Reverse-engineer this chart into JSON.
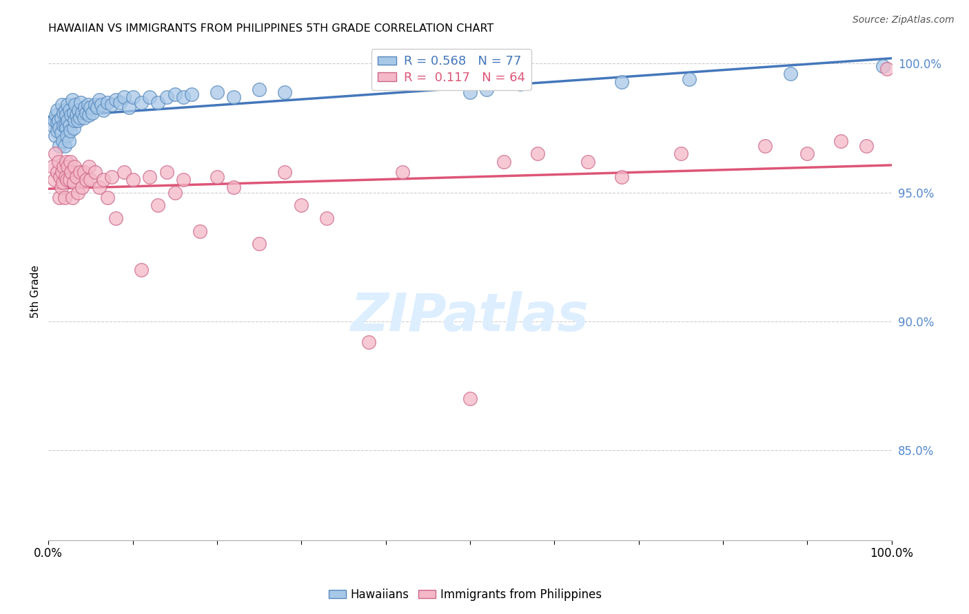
{
  "title": "HAWAIIAN VS IMMIGRANTS FROM PHILIPPINES 5TH GRADE CORRELATION CHART",
  "source": "Source: ZipAtlas.com",
  "ylabel": "5th Grade",
  "legend_label1": "Hawaiians",
  "legend_label2": "Immigrants from Philippines",
  "r1": 0.568,
  "n1": 77,
  "r2": 0.117,
  "n2": 64,
  "color_blue_fill": "#a8c8e8",
  "color_blue_edge": "#5588bb",
  "color_pink_fill": "#f4b8c8",
  "color_pink_edge": "#cc6688",
  "color_blue_line": "#4477bb",
  "color_pink_line": "#dd5577",
  "background": "#ffffff",
  "watermark_color": "#ddeeff",
  "ytick_labels": [
    "85.0%",
    "90.0%",
    "95.0%",
    "100.0%"
  ],
  "ytick_values": [
    0.85,
    0.9,
    0.95,
    1.0
  ],
  "ymin": 0.815,
  "ymax": 1.008,
  "xmin": 0.0,
  "xmax": 1.0,
  "blue_points_x": [
    0.005,
    0.007,
    0.008,
    0.009,
    0.01,
    0.01,
    0.01,
    0.012,
    0.013,
    0.013,
    0.015,
    0.015,
    0.016,
    0.017,
    0.018,
    0.018,
    0.019,
    0.02,
    0.02,
    0.021,
    0.021,
    0.022,
    0.023,
    0.023,
    0.024,
    0.025,
    0.025,
    0.026,
    0.027,
    0.028,
    0.03,
    0.03,
    0.031,
    0.032,
    0.033,
    0.035,
    0.036,
    0.037,
    0.038,
    0.04,
    0.042,
    0.043,
    0.045,
    0.047,
    0.048,
    0.05,
    0.052,
    0.055,
    0.058,
    0.06,
    0.063,
    0.065,
    0.07,
    0.075,
    0.08,
    0.085,
    0.09,
    0.095,
    0.1,
    0.11,
    0.12,
    0.13,
    0.14,
    0.15,
    0.16,
    0.17,
    0.2,
    0.22,
    0.25,
    0.28,
    0.5,
    0.52,
    0.56,
    0.68,
    0.76,
    0.88,
    0.99
  ],
  "blue_points_y": [
    0.976,
    0.978,
    0.972,
    0.98,
    0.974,
    0.977,
    0.982,
    0.978,
    0.968,
    0.975,
    0.973,
    0.979,
    0.984,
    0.97,
    0.976,
    0.981,
    0.968,
    0.976,
    0.982,
    0.975,
    0.98,
    0.972,
    0.978,
    0.984,
    0.97,
    0.976,
    0.982,
    0.974,
    0.98,
    0.986,
    0.975,
    0.981,
    0.978,
    0.984,
    0.98,
    0.978,
    0.982,
    0.979,
    0.985,
    0.981,
    0.979,
    0.983,
    0.981,
    0.984,
    0.98,
    0.983,
    0.981,
    0.984,
    0.983,
    0.986,
    0.984,
    0.982,
    0.985,
    0.984,
    0.986,
    0.985,
    0.987,
    0.983,
    0.987,
    0.985,
    0.987,
    0.985,
    0.987,
    0.988,
    0.987,
    0.988,
    0.989,
    0.987,
    0.99,
    0.989,
    0.989,
    0.99,
    0.992,
    0.993,
    0.994,
    0.996,
    0.999
  ],
  "pink_points_x": [
    0.005,
    0.007,
    0.008,
    0.01,
    0.012,
    0.013,
    0.014,
    0.015,
    0.016,
    0.017,
    0.018,
    0.019,
    0.02,
    0.021,
    0.022,
    0.023,
    0.025,
    0.026,
    0.027,
    0.028,
    0.03,
    0.031,
    0.033,
    0.035,
    0.037,
    0.04,
    0.042,
    0.045,
    0.048,
    0.05,
    0.055,
    0.06,
    0.065,
    0.07,
    0.075,
    0.08,
    0.09,
    0.1,
    0.11,
    0.12,
    0.13,
    0.14,
    0.15,
    0.16,
    0.18,
    0.2,
    0.22,
    0.25,
    0.28,
    0.3,
    0.33,
    0.38,
    0.42,
    0.5,
    0.54,
    0.58,
    0.64,
    0.68,
    0.75,
    0.85,
    0.9,
    0.94,
    0.97,
    0.995
  ],
  "pink_points_y": [
    0.96,
    0.955,
    0.965,
    0.958,
    0.962,
    0.948,
    0.956,
    0.952,
    0.958,
    0.954,
    0.96,
    0.948,
    0.956,
    0.962,
    0.955,
    0.96,
    0.955,
    0.962,
    0.958,
    0.948,
    0.954,
    0.96,
    0.956,
    0.95,
    0.958,
    0.952,
    0.958,
    0.955,
    0.96,
    0.955,
    0.958,
    0.952,
    0.955,
    0.948,
    0.956,
    0.94,
    0.958,
    0.955,
    0.92,
    0.956,
    0.945,
    0.958,
    0.95,
    0.955,
    0.935,
    0.956,
    0.952,
    0.93,
    0.958,
    0.945,
    0.94,
    0.892,
    0.958,
    0.87,
    0.962,
    0.965,
    0.962,
    0.956,
    0.965,
    0.968,
    0.965,
    0.97,
    0.968,
    0.998
  ]
}
